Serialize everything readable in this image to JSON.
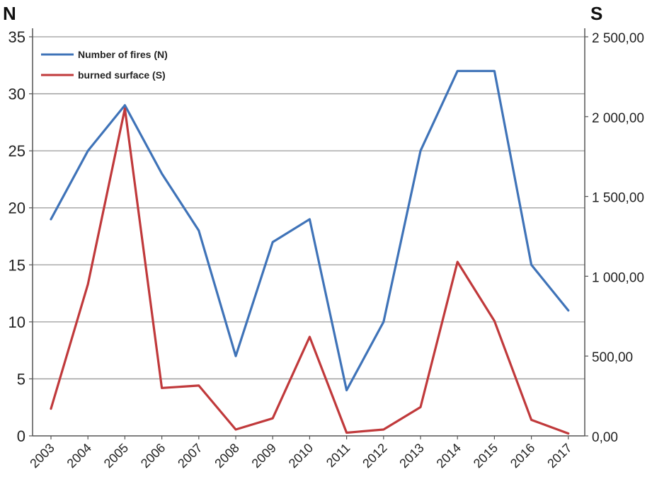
{
  "chart_data": {
    "type": "line",
    "title": "",
    "y_left_label": "N",
    "y_right_label": "S",
    "categories": [
      "2003",
      "2004",
      "2005",
      "2006",
      "2007",
      "2008",
      "2009",
      "2010",
      "2011",
      "2012",
      "2013",
      "2014",
      "2015",
      "2016",
      "2017"
    ],
    "y_left_range": [
      0,
      35
    ],
    "y_left_ticks": [
      "0",
      "5",
      "10",
      "15",
      "20",
      "25",
      "30",
      "35"
    ],
    "y_right_range": [
      0,
      2500
    ],
    "y_right_ticks": [
      "0,00",
      "500,00",
      "1 000,00",
      "1 500,00",
      "2 000,00",
      "2 500,00"
    ],
    "grid": true,
    "legend_position": "top-left",
    "series": [
      {
        "name": "Number of fires (N)",
        "axis": "left",
        "color": "#3f73b8",
        "values": [
          19,
          25,
          29,
          23,
          18,
          7,
          17,
          19,
          4,
          10,
          25,
          32,
          32,
          15,
          11
        ]
      },
      {
        "name": "burned surface (S)",
        "axis": "right",
        "color": "#c0393b",
        "values": [
          170,
          950,
          2050,
          300,
          315,
          40,
          110,
          620,
          20,
          40,
          180,
          1090,
          720,
          100,
          15
        ]
      }
    ]
  }
}
